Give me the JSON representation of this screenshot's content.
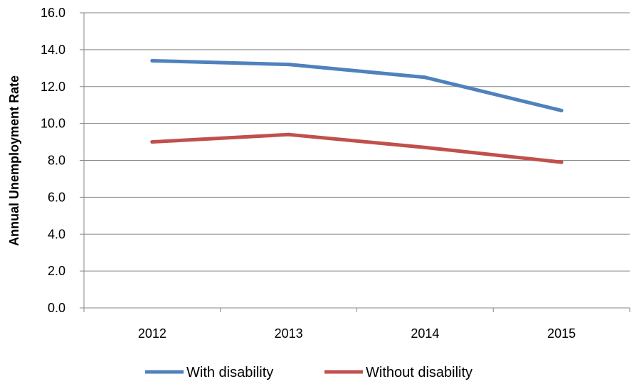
{
  "chart_data": {
    "type": "line",
    "title": "",
    "xlabel": "",
    "ylabel": "Annual Unemployment Rate",
    "categories": [
      "2012",
      "2013",
      "2014",
      "2015"
    ],
    "ylim": [
      0,
      16
    ],
    "yticks": [
      "0.0",
      "2.0",
      "4.0",
      "6.0",
      "8.0",
      "10.0",
      "12.0",
      "14.0",
      "16.0"
    ],
    "grid": true,
    "legend_position": "bottom",
    "series": [
      {
        "name": "With disability",
        "color": "#4f81bd",
        "values": [
          13.4,
          13.2,
          12.5,
          10.7
        ]
      },
      {
        "name": "Without disability",
        "color": "#c0504d",
        "values": [
          9.0,
          9.4,
          8.7,
          7.9
        ]
      }
    ]
  }
}
